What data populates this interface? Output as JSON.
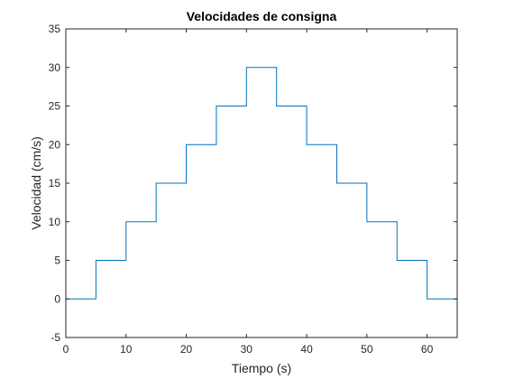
{
  "chart_data": {
    "type": "line",
    "title": "Velocidades de consigna",
    "xlabel": "Tiempo (s)",
    "ylabel": "Velocidad (cm/s)",
    "xlim": [
      0,
      65
    ],
    "ylim": [
      -5,
      35
    ],
    "xticks": [
      0,
      10,
      20,
      30,
      40,
      50,
      60
    ],
    "yticks": [
      -5,
      0,
      5,
      10,
      15,
      20,
      25,
      30,
      35
    ],
    "grid": false,
    "line_color": "#0072bd",
    "series": [
      {
        "step": "post",
        "x": [
          0,
          5,
          10,
          15,
          20,
          25,
          30,
          35,
          40,
          45,
          50,
          55,
          60,
          65
        ],
        "y": [
          0,
          5,
          10,
          15,
          20,
          25,
          30,
          25,
          20,
          15,
          10,
          5,
          0,
          0
        ]
      }
    ]
  }
}
